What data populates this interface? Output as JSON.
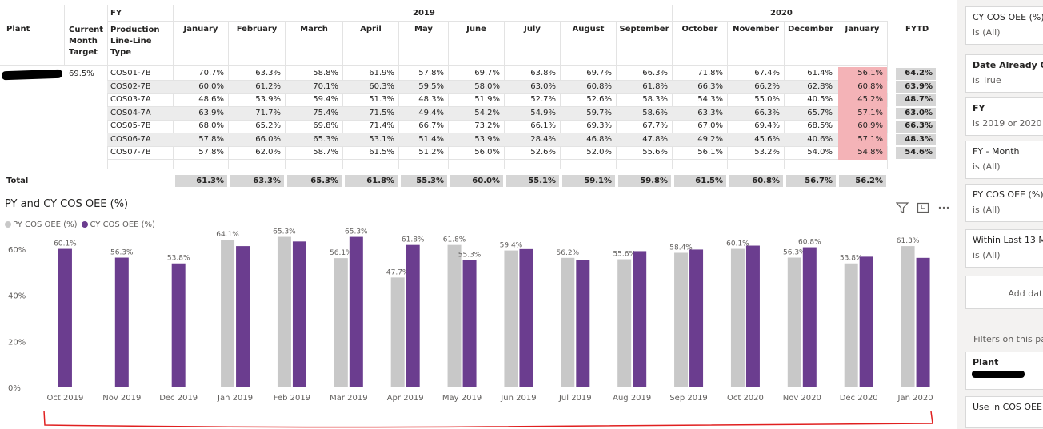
{
  "matrix": {
    "headers": {
      "plant": "Plant",
      "target": [
        "Current",
        "Month",
        "Target"
      ],
      "fy": "FY",
      "line_type": [
        "Production",
        "Line-Line",
        "Type"
      ],
      "year_2019": "2019",
      "year_2020": "2020",
      "fytd": "FYTD"
    },
    "months": [
      "January",
      "February",
      "March",
      "April",
      "May",
      "June",
      "July",
      "August",
      "September",
      "October",
      "November",
      "December",
      "January"
    ],
    "target_value": "69.5%",
    "rows": [
      {
        "line": "COS01-7B",
        "values": [
          "70.7%",
          "63.3%",
          "58.8%",
          "61.9%",
          "57.8%",
          "69.7%",
          "63.8%",
          "69.7%",
          "66.3%",
          "71.8%",
          "67.4%",
          "61.4%",
          "56.1%"
        ],
        "fytd": "64.2%"
      },
      {
        "line": "COS02-7B",
        "values": [
          "60.0%",
          "61.2%",
          "70.1%",
          "60.3%",
          "59.5%",
          "58.0%",
          "63.0%",
          "60.8%",
          "61.8%",
          "66.3%",
          "66.2%",
          "62.8%",
          "60.8%"
        ],
        "fytd": "63.9%"
      },
      {
        "line": "COS03-7A",
        "values": [
          "48.6%",
          "53.9%",
          "59.4%",
          "51.3%",
          "48.3%",
          "51.9%",
          "52.7%",
          "52.6%",
          "58.3%",
          "54.3%",
          "55.0%",
          "40.5%",
          "45.2%"
        ],
        "fytd": "48.7%"
      },
      {
        "line": "COS04-7A",
        "values": [
          "63.9%",
          "71.7%",
          "75.4%",
          "71.5%",
          "49.4%",
          "54.2%",
          "54.9%",
          "59.7%",
          "58.6%",
          "63.3%",
          "66.3%",
          "65.7%",
          "57.1%"
        ],
        "fytd": "63.0%"
      },
      {
        "line": "COS05-7B",
        "values": [
          "68.0%",
          "65.2%",
          "69.8%",
          "71.4%",
          "66.7%",
          "73.2%",
          "66.1%",
          "69.3%",
          "67.7%",
          "67.0%",
          "69.4%",
          "68.5%",
          "60.9%"
        ],
        "fytd": "66.3%"
      },
      {
        "line": "COS06-7A",
        "values": [
          "57.8%",
          "66.0%",
          "65.3%",
          "53.1%",
          "51.4%",
          "53.9%",
          "28.4%",
          "46.8%",
          "47.8%",
          "49.2%",
          "45.6%",
          "40.6%",
          "57.1%"
        ],
        "fytd": "48.3%"
      },
      {
        "line": "COS07-7B",
        "values": [
          "57.8%",
          "62.0%",
          "58.7%",
          "61.5%",
          "51.2%",
          "56.0%",
          "52.6%",
          "52.0%",
          "55.6%",
          "56.1%",
          "53.2%",
          "54.0%",
          "54.8%"
        ],
        "fytd": "54.6%"
      }
    ],
    "total_label": "Total",
    "totals": [
      "61.3%",
      "63.3%",
      "65.3%",
      "61.8%",
      "55.3%",
      "60.0%",
      "55.1%",
      "59.1%",
      "59.8%",
      "61.5%",
      "60.8%",
      "56.7%",
      "56.2%"
    ],
    "highlight_color": "#f4b3b7"
  },
  "chart": {
    "icons": [
      "filter-icon",
      "focus-mode-icon",
      "more-options-icon"
    ]
  },
  "chart_data": {
    "type": "bar",
    "title": "PY and CY COS OEE (%)",
    "categories": [
      "Oct 2019",
      "Nov 2019",
      "Dec 2019",
      "Jan 2019",
      "Feb 2019",
      "Mar 2019",
      "Apr 2019",
      "May 2019",
      "Jun 2019",
      "Jul 2019",
      "Aug 2019",
      "Sep 2019",
      "Oct 2020",
      "Nov 2020",
      "Dec 2020",
      "Jan 2020"
    ],
    "series": [
      {
        "name": "PY COS OEE (%)",
        "color": "#c8c8c8",
        "values": [
          null,
          null,
          null,
          64.1,
          65.3,
          56.1,
          47.7,
          61.8,
          59.4,
          56.2,
          55.6,
          58.4,
          60.1,
          56.3,
          53.8,
          61.3
        ],
        "labels": [
          "",
          "",
          "",
          "64.1%",
          "65.3%",
          "56.1%",
          "47.7%",
          "61.8%",
          "59.4%",
          "56.2%",
          "55.6%",
          "58.4%",
          "60.1%",
          "56.3%",
          "53.8%",
          "61.3%"
        ]
      },
      {
        "name": "CY COS OEE (%)",
        "color": "#6b3d8f",
        "values": [
          60.1,
          56.3,
          53.8,
          61.3,
          63.3,
          65.3,
          61.8,
          55.3,
          60.0,
          55.1,
          59.1,
          59.8,
          61.5,
          60.8,
          56.7,
          56.2
        ],
        "labels": [
          "60.1%",
          "56.3%",
          "53.8%",
          "",
          "",
          "65.3%",
          "61.8%",
          "55.3%",
          "",
          "",
          "",
          "",
          "",
          "60.8%",
          "",
          ""
        ]
      }
    ],
    "yticks": [
      "0%",
      "20%",
      "40%",
      "60%"
    ],
    "ylim": [
      0,
      70
    ],
    "grid": false,
    "legend": "top-left"
  },
  "filters": {
    "cards": [
      {
        "title": "CY COS OEE (%)",
        "value": "is (All)",
        "bold": false,
        "top": 8
      },
      {
        "title": "Date Already Oc",
        "value": "is True",
        "bold": true,
        "top": 68
      },
      {
        "title": "FY",
        "value": "is 2019 or 2020",
        "bold": true,
        "top": 122
      },
      {
        "title": "FY - Month",
        "value": "is (All)",
        "bold": false,
        "top": 176
      },
      {
        "title": "PY COS OEE (%)",
        "value": "is (All)",
        "bold": false,
        "top": 230
      },
      {
        "title": "Within Last 13 M",
        "value": "is (All)",
        "bold": false,
        "top": 287
      }
    ],
    "add_data": "Add data",
    "filters_on_page": "Filters on this page",
    "plant_card_title": "Plant",
    "bottom_card_title": "Use in COS OEE"
  }
}
